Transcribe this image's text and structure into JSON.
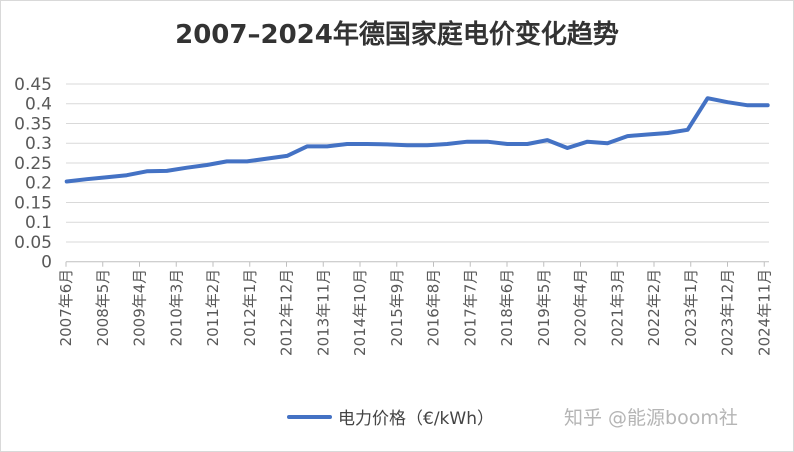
{
  "chart_data": {
    "type": "line",
    "title": "2007–2024年德国家庭电价变化趋势",
    "xlabel": "",
    "ylabel": "",
    "ylim": [
      0,
      0.45
    ],
    "yticks": [
      "0",
      "0.05",
      "0.1",
      "0.15",
      "0.2",
      "0.25",
      "0.3",
      "0.35",
      "0.4",
      "0.45"
    ],
    "xtick_labels": [
      "2007年6月",
      "2008年5月",
      "2009年4月",
      "2010年3月",
      "2011年2月",
      "2012年1月",
      "2012年12月",
      "2013年11月",
      "2014年10月",
      "2015年9月",
      "2016年8月",
      "2017年7月",
      "2018年6月",
      "2019年5月",
      "2020年4月",
      "2021年3月",
      "2022年2月",
      "2023年1月",
      "2023年12月",
      "2024年11月"
    ],
    "grid": true,
    "legend": "bottom",
    "series": [
      {
        "name": "电力价格（€/kWh）",
        "color": "#4472c4",
        "values": [
          0.203,
          0.209,
          0.214,
          0.219,
          0.229,
          0.23,
          0.238,
          0.245,
          0.254,
          0.254,
          0.261,
          0.268,
          0.292,
          0.292,
          0.298,
          0.298,
          0.297,
          0.295,
          0.295,
          0.298,
          0.304,
          0.304,
          0.298,
          0.298,
          0.308,
          0.288,
          0.304,
          0.3,
          0.318,
          0.322,
          0.326,
          0.334,
          0.414,
          0.404,
          0.396,
          0.396
        ]
      }
    ]
  },
  "watermark": "知乎 @能源boom社"
}
